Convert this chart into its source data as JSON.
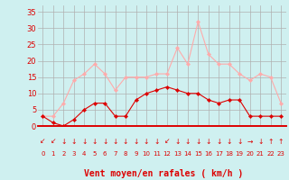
{
  "x": [
    0,
    1,
    2,
    3,
    4,
    5,
    6,
    7,
    8,
    9,
    10,
    11,
    12,
    13,
    14,
    15,
    16,
    17,
    18,
    19,
    20,
    21,
    22,
    23
  ],
  "wind_avg": [
    3,
    1,
    0,
    2,
    5,
    7,
    7,
    3,
    3,
    8,
    10,
    11,
    12,
    11,
    10,
    10,
    8,
    7,
    8,
    8,
    3,
    3,
    3,
    3
  ],
  "wind_gust": [
    3,
    3,
    7,
    14,
    16,
    19,
    16,
    11,
    15,
    15,
    15,
    16,
    16,
    24,
    19,
    32,
    22,
    19,
    19,
    16,
    14,
    16,
    15,
    7
  ],
  "bg_color": "#cff0f0",
  "line_avg_color": "#dd0000",
  "line_gust_color": "#ffaaaa",
  "grid_color": "#b0b0b0",
  "xlabel": "Vent moyen/en rafales ( km/h )",
  "xlabel_color": "#dd0000",
  "tick_color": "#dd0000",
  "yticks": [
    0,
    5,
    10,
    15,
    20,
    25,
    30,
    35
  ],
  "ylim": [
    0,
    37
  ],
  "xlim": [
    -0.5,
    23.5
  ],
  "arrows": [
    "↙",
    "↙",
    "↓",
    "↓",
    "↓",
    "↓",
    "↓",
    "↓",
    "↓",
    "↓",
    "↓",
    "↓",
    "↙",
    "↓",
    "↓",
    "↓",
    "↓",
    "↓",
    "↓",
    "↓",
    "→",
    "↓",
    "↑",
    "↑"
  ]
}
